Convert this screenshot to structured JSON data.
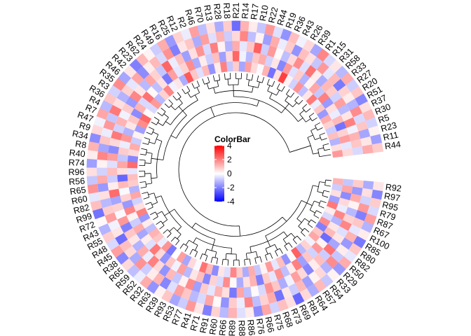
{
  "chart_data": {
    "type": "heatmap",
    "layout": "circular",
    "title": "",
    "legend": {
      "title": "ColorBar",
      "ticks": [
        4,
        2,
        0,
        -2,
        -4
      ],
      "range": [
        -4,
        4
      ],
      "colors": {
        "low": "#0000ff",
        "mid": "#ffffff",
        "high": "#ff0000"
      },
      "placement": "center"
    },
    "track_count": 5,
    "dendrogram": true,
    "gap_degrees": 12,
    "rows": [
      "R92",
      "R97",
      "R95",
      "R79",
      "R87",
      "R67",
      "R100",
      "R85",
      "R80",
      "R82",
      "R50",
      "R29",
      "R33",
      "R54",
      "R57",
      "R64",
      "R81",
      "R69",
      "R73",
      "R68",
      "R75",
      "R66",
      "R76",
      "R86",
      "R88",
      "R89",
      "R66",
      "R60",
      "R91",
      "R71",
      "R41",
      "R77",
      "R53",
      "R93",
      "R39",
      "R63",
      "R32",
      "R52",
      "R59",
      "R65",
      "R38",
      "R45",
      "R48",
      "R55",
      "R43",
      "R72",
      "R99",
      "R82",
      "R60",
      "R65",
      "R56",
      "R96",
      "R74",
      "R40",
      "R8",
      "R34",
      "R9",
      "R47",
      "R7",
      "R4",
      "R36",
      "R3",
      "R35",
      "R46",
      "R42",
      "R23",
      "R62",
      "R24",
      "R49",
      "R16",
      "R25",
      "R12",
      "R2",
      "R46",
      "R70",
      "R13",
      "R28",
      "R18",
      "R21",
      "R14",
      "R17",
      "R10",
      "R22",
      "R44",
      "R19",
      "R36",
      "R43",
      "R26",
      "R39",
      "R1",
      "R15",
      "R31",
      "R58",
      "R33",
      "R27",
      "R20",
      "R51",
      "R37",
      "R30",
      "R5",
      "R23",
      "R11",
      "R44"
    ],
    "values": [
      [
        1.2,
        -0.8,
        0.5,
        -1.5,
        2.1,
        0.3,
        -0.6,
        1.8,
        -2.0,
        0.9,
        1.4,
        -0.2,
        0.7,
        -1.1,
        2.5,
        0.1,
        -1.7,
        1.0,
        -0.4,
        1.6,
        0.2,
        -0.9,
        1.3,
        -1.3,
        0.8,
        1.9,
        -0.5,
        0.4,
        -1.8,
        1.1,
        2.2,
        -0.1,
        0.6,
        -1.4,
        1.5,
        0.0,
        -2.1,
        1.7,
        -0.3,
        0.9,
        1.2,
        -1.0,
        0.3,
        -1.6,
        2.0,
        0.5,
        -0.7,
        1.4,
        -1.2,
        0.8,
        1.0,
        -0.4,
        2.3,
        -1.9,
        0.6,
        1.3,
        -0.8,
        0.2,
        -1.5,
        1.8,
        2.4,
        0.1,
        -0.6,
        1.6,
        -1.1,
        0.7,
        1.9,
        -0.2,
        0.4,
        -1.3,
        2.6,
        0.9,
        -0.5,
        1.1,
        -1.7,
        0.3,
        2.0,
        -0.9,
        0.8,
        -1.4,
        1.5,
        0.6,
        -0.1,
        1.2,
        -2.2,
        0.5,
        3.0,
        0.2,
        -0.7,
        1.7,
        -1.0,
        0.4,
        2.1,
        -0.3,
        0.9,
        -1.6,
        1.3,
        0.7,
        -0.8,
        1.0,
        -1.2,
        0.5,
        1.6
      ],
      [
        -0.9,
        1.4,
        -1.8,
        0.6,
        -0.3,
        1.9,
        -1.2,
        0.4,
        1.1,
        -2.3,
        0.2,
        1.6,
        -0.7,
        0.9,
        -1.5,
        2.0,
        0.3,
        -1.0,
        1.7,
        -0.4,
        0.8,
        -2.0,
        1.2,
        0.5,
        -1.3,
        0.1,
        1.8,
        -0.6,
        0.7,
        -1.9,
        1.0,
        0.4,
        -1.1,
        1.5,
        -0.2,
        0.9,
        -1.7,
        0.6,
        2.1,
        -0.5,
        0.3,
        -1.4,
        1.3,
        -0.8,
        0.2,
        1.9,
        -1.6,
        0.7,
        -0.1,
        1.1,
        -2.4,
        0.5,
        1.4,
        -0.9,
        0.8,
        -0.3,
        1.6,
        -1.2,
        0.4,
        0.9,
        -1.8,
        1.2,
        -0.6,
        2.2,
        0.1,
        -1.0,
        0.5,
        -2.1,
        1.5,
        -0.4,
        0.7,
        1.8,
        -1.3,
        0.3,
        -0.8,
        1.0,
        -1.5,
        0.6,
        2.4,
        -0.2,
        -1.1,
        0.9,
        1.3,
        -0.7,
        0.4,
        -1.9,
        1.6,
        -0.5,
        0.8,
        -1.2,
        0.2,
        1.4,
        -0.9,
        2.0,
        -1.6,
        0.5,
        -0.3,
        1.1,
        -2.2,
        0.7,
        1.5,
        -0.4,
        0.6
      ],
      [
        0.8,
        -1.6,
        1.3,
        0.2,
        -1.1,
        0.7,
        1.9,
        -0.5,
        0.4,
        -1.4,
        2.2,
        -0.8,
        1.0,
        0.3,
        -1.9,
        0.6,
        1.5,
        -0.2,
        -1.3,
        0.9,
        1.7,
        -0.6,
        0.1,
        -1.0,
        1.4,
        -2.1,
        0.5,
        1.2,
        -0.4,
        0.8,
        -1.5,
        1.8,
        0.2,
        -0.9,
        1.1,
        -1.7,
        0.6,
        2.0,
        -0.3,
        1.3,
        -1.2,
        0.4,
        0.9,
        -2.0,
        1.6,
        -0.1,
        0.7,
        -1.4,
        2.3,
        0.3,
        -0.8,
        1.0,
        -0.5,
        1.5,
        -1.8,
        0.6,
        2.1,
        -0.7,
        1.2,
        -0.2,
        0.8,
        -1.6,
        1.9,
        0.4,
        -1.1,
        1.4,
        0.7,
        -0.9,
        2.4,
        -0.3,
        1.0,
        -1.5,
        0.5,
        1.7,
        -0.6,
        2.0,
        0.2,
        -1.2,
        1.3,
        -0.4,
        0.9,
        2.5,
        -0.8,
        1.6,
        0.1,
        -1.0,
        0.6,
        1.8,
        -0.5,
        2.2,
        0.3,
        -1.3,
        1.1,
        0.8,
        -0.7,
        1.5,
        -1.1,
        0.4,
        2.0,
        -0.2,
        1.2,
        0.9,
        -0.6
      ],
      [
        -1.3,
        0.5,
        -0.7,
        1.6,
        -2.0,
        0.9,
        -0.4,
        1.2,
        -1.6,
        0.3,
        -0.9,
        1.8,
        -1.2,
        0.6,
        0.2,
        -1.5,
        1.1,
        -0.8,
        0.4,
        -2.2,
        1.3,
        0.7,
        -1.0,
        1.9,
        -0.3,
        0.8,
        -1.7,
        0.1,
        1.4,
        -0.6,
        -1.1,
        0.9,
        1.5,
        -0.5,
        -1.9,
        1.2,
        0.3,
        -0.8,
        1.7,
        -1.3,
        0.6,
        1.0,
        -2.3,
        0.4,
        -0.2,
        1.5,
        0.8,
        -1.1,
        0.5,
        -1.6,
        1.3,
        -0.7,
        0.2,
        1.9,
        -1.4,
        0.9,
        -0.3,
        1.6,
        -0.9,
        2.1,
        0.5,
        -1.2,
        0.7,
        -0.4,
        1.4,
        -1.8,
        0.3,
        1.1,
        -0.6,
        1.7,
        -2.0,
        0.4,
        0.9,
        -1.3,
        1.5,
        -0.5,
        1.2,
        -0.8,
        0.6,
        1.9,
        -1.0,
        0.2,
        -1.5,
        1.3,
        -0.3,
        0.8,
        -1.7,
        1.0,
        0.5,
        -0.9,
        1.6,
        -0.4,
        1.1,
        -2.1,
        0.7,
        0.3,
        -1.2,
        1.8,
        -0.6,
        0.9,
        -1.4,
        0.4,
        1.3
      ],
      [
        0.4,
        -1.9,
        0.8,
        -0.6,
        1.5,
        -1.2,
        0.3,
        -2.1,
        0.9,
        -0.4,
        1.3,
        -1.6,
        0.2,
        -0.9,
        1.1,
        -1.3,
        0.6,
        -2.4,
        0.5,
        1.0,
        -0.7,
        1.4,
        -1.8,
        0.3,
        -0.5,
        1.2,
        -1.1,
        0.7,
        -2.0,
        0.4,
        1.6,
        -0.8,
        -1.4,
        0.9,
        0.2,
        -1.7,
        1.3,
        -0.3,
        -1.0,
        0.6,
        -1.9,
        1.5,
        -0.6,
        0.8,
        -1.2,
        0.1,
        -2.2,
        1.0,
        -0.4,
        1.7,
        -0.9,
        0.5,
        -1.5,
        0.3,
        1.2,
        -1.8,
        0.6,
        -0.2,
        1.4,
        -1.1,
        0.9,
        -0.7,
        1.8,
        -1.4,
        0.4,
        -2.0,
        1.1,
        0.2,
        -0.8,
        1.3,
        -1.6,
        0.7,
        -0.3,
        1.5,
        -1.0,
        0.5,
        -1.3,
        0.8,
        -2.3,
        1.2,
        0.3,
        -0.9,
        1.6,
        -0.5,
        -1.7,
        1.0,
        -0.2,
        0.6,
        -1.4,
        1.9,
        -0.6,
        0.4,
        -1.1,
        1.3,
        -0.8,
        0.9,
        -1.9,
        0.5,
        1.1,
        -0.7,
        0.2,
        -1.5,
        0.8
      ]
    ]
  }
}
